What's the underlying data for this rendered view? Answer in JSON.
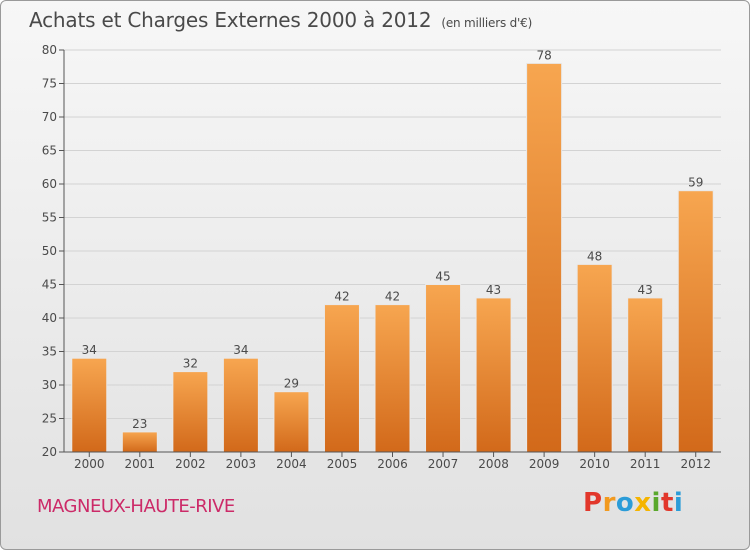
{
  "header": {
    "title": "Achats et Charges Externes 2000 à 2012",
    "subtitle": "(en milliers d'€)"
  },
  "footer": {
    "place": "MAGNEUX-HAUTE-RIVE",
    "logo": "Proxiti"
  },
  "colors": {
    "bar_top": "#f7a650",
    "bar_bottom": "#d2691a",
    "place": "#cc2a68",
    "logo_letters": [
      "#e2372b",
      "#f29a1f",
      "#2b9cd8",
      "#f5b400",
      "#59a82c",
      "#e2372b",
      "#2b9cd8"
    ]
  },
  "chart_data": {
    "type": "bar",
    "title": "Achats et Charges Externes 2000 à 2012",
    "subtitle": "(en milliers d'€)",
    "categories": [
      "2000",
      "2001",
      "2002",
      "2003",
      "2004",
      "2005",
      "2006",
      "2007",
      "2008",
      "2009",
      "2010",
      "2011",
      "2012"
    ],
    "values": [
      34,
      23,
      32,
      34,
      29,
      42,
      42,
      45,
      43,
      78,
      48,
      43,
      59
    ],
    "ylim": [
      20,
      80
    ],
    "yticks": [
      20,
      25,
      30,
      35,
      40,
      45,
      50,
      55,
      60,
      65,
      70,
      75,
      80
    ],
    "grid": true,
    "xlabel": "",
    "ylabel": ""
  }
}
